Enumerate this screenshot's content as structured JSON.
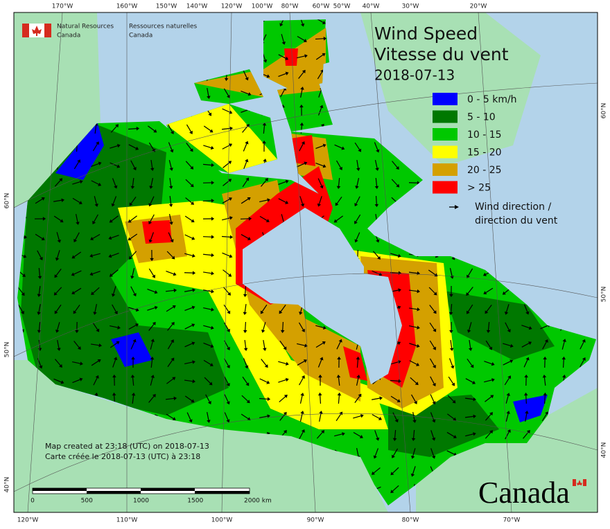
{
  "header": {
    "agency_en": "Natural Resources",
    "country_en": "Canada",
    "agency_fr": "Ressources naturelles",
    "country_fr": "Canada"
  },
  "title": {
    "en": "Wind Speed",
    "fr": "Vitesse du vent",
    "date": "2018-07-13"
  },
  "legend": {
    "items": [
      {
        "label": "0 - 5 km/h",
        "color": "#0000ff"
      },
      {
        "label": "5 - 10",
        "color": "#007800"
      },
      {
        "label": "10 - 15",
        "color": "#00c800"
      },
      {
        "label": "15 - 20",
        "color": "#ffff00"
      },
      {
        "label": "20 - 25",
        "color": "#d4a000"
      },
      {
        "label": "> 25",
        "color": "#ff0000"
      }
    ],
    "direction": [
      "Wind direction /",
      "direction du vent"
    ]
  },
  "graticule": {
    "top": [
      "170°W",
      "160°W",
      "150°W",
      "140°W",
      "120°W",
      "100°W",
      "80°W",
      "60°W",
      "50°W",
      "40°W",
      "30°W",
      "20°W"
    ],
    "bottom": [
      "120°W",
      "110°W",
      "100°W",
      "90°W",
      "80°W",
      "70°W"
    ],
    "left": [
      "60°N",
      "50°N",
      "40°N"
    ],
    "right": [
      "60°N",
      "50°N",
      "40°N"
    ]
  },
  "credits": [
    "Map created at 23:18 (UTC) on 2018-07-13",
    "Carte créée le 2018-07-13 (UTC) à 23:18"
  ],
  "scale": {
    "labels": [
      "0",
      "500",
      "1000",
      "1500",
      "2000 km"
    ]
  },
  "wordmark": "Canada"
}
